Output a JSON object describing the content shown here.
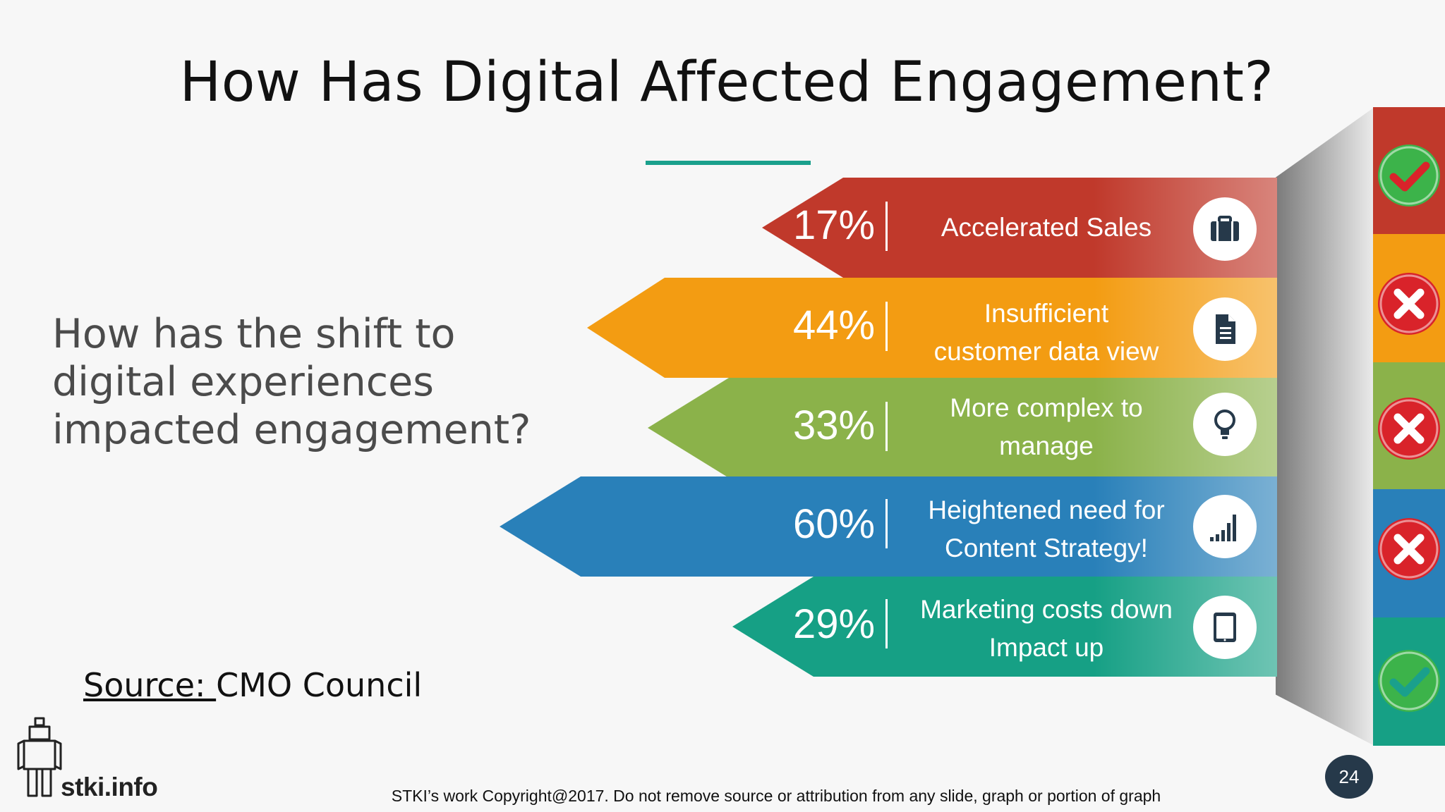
{
  "slide": {
    "title": "How Has Digital Affected Engagement?",
    "question": "How has the shift to digital experiences impacted engagement?",
    "source_label": "Source: ",
    "source_value": "CMO Council",
    "copyright": "STKI’s work Copyright@2017. Do not remove source or attribution from any slide, graph or portion of graph",
    "page_number": "24",
    "logo_text": "stki.info"
  },
  "items": [
    {
      "percent": "17%",
      "label_line1": "Accelerated Sales",
      "label_line2": "",
      "icon": "briefcase-icon",
      "color": "#c0392b",
      "status": "check"
    },
    {
      "percent": "44%",
      "label_line1": "Insufficient",
      "label_line2": "customer data view",
      "icon": "document-icon",
      "color": "#f39c12",
      "status": "cross"
    },
    {
      "percent": "33%",
      "label_line1": "More complex to",
      "label_line2": "manage",
      "icon": "lightbulb-icon",
      "color": "#8bb24a",
      "status": "cross"
    },
    {
      "percent": "60%",
      "label_line1": "Heightened need for",
      "label_line2": "Content Strategy!",
      "icon": "signal-bars-icon",
      "color": "#2980b9",
      "status": "cross"
    },
    {
      "percent": "29%",
      "label_line1": "Marketing costs down",
      "label_line2": "Impact up",
      "icon": "tablet-icon",
      "color": "#16a085",
      "status": "check"
    }
  ],
  "colors": {
    "accent_rule": "#1aa08c",
    "page_badge": "#26394a",
    "check_green": "#3cb34a",
    "cross_red": "#d9232a"
  }
}
